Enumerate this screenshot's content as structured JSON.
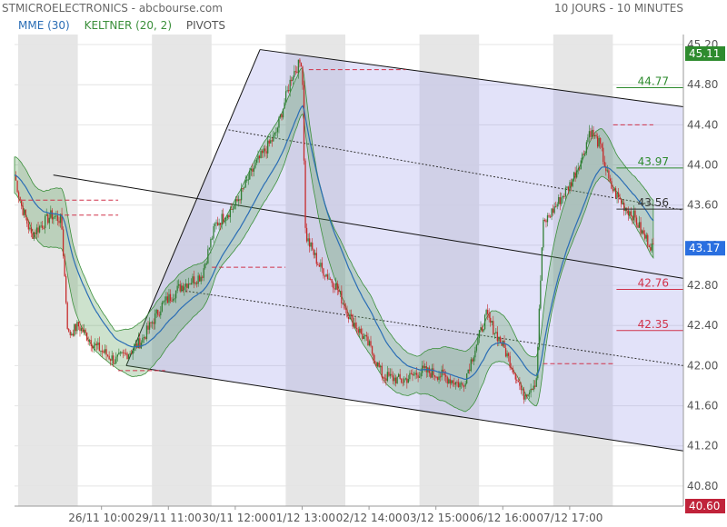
{
  "header": {
    "title": "STMICROELECTRONICS - abcbourse.com",
    "period": "10 JOURS - 10 MINUTES"
  },
  "legend": [
    {
      "label": "MME (30)",
      "color": "#2a6db5"
    },
    {
      "label": "KELTNER (20, 2)",
      "color": "#3b8f3b"
    },
    {
      "label": "PIVOTS",
      "color": "#555555"
    }
  ],
  "chart_data": {
    "type": "candlestick",
    "x_labels": [
      "26/11 10:00",
      "29/11 11:00",
      "30/11 12:00",
      "01/12 13:00",
      "02/12 14:00",
      "03/12 15:00",
      "06/12 16:00",
      "07/12 17:00"
    ],
    "y_ticks": [
      "45.20",
      "44.80",
      "44.40",
      "44.00",
      "43.60",
      "43.20",
      "42.80",
      "42.40",
      "42.00",
      "41.60",
      "41.20",
      "40.80"
    ],
    "ylim": [
      40.6,
      45.3
    ],
    "last_price": "43.17",
    "high_badge": "45.11",
    "low_badge": "40.60",
    "levels": [
      {
        "label": "44.77",
        "value": 44.77,
        "color": "#2e8b2e"
      },
      {
        "label": "43.97",
        "value": 43.97,
        "color": "#2e8b2e"
      },
      {
        "label": "43.56",
        "value": 43.56,
        "color": "#333333"
      },
      {
        "label": "42.76",
        "value": 42.76,
        "color": "#d0324a"
      },
      {
        "label": "42.35",
        "value": 42.35,
        "color": "#d0324a"
      }
    ],
    "price_path": [
      [
        0,
        43.9
      ],
      [
        0.1,
        43.6
      ],
      [
        0.25,
        43.3
      ],
      [
        0.4,
        43.4
      ],
      [
        0.55,
        43.5
      ],
      [
        0.7,
        43.45
      ],
      [
        0.8,
        42.3
      ],
      [
        0.95,
        42.4
      ],
      [
        1.2,
        42.2
      ],
      [
        1.5,
        42.05
      ],
      [
        1.75,
        42.15
      ],
      [
        1.9,
        42.25
      ],
      [
        2.2,
        42.6
      ],
      [
        2.5,
        42.8
      ],
      [
        2.8,
        42.9
      ],
      [
        3.0,
        43.4
      ],
      [
        3.3,
        43.6
      ],
      [
        3.6,
        44.0
      ],
      [
        3.9,
        44.3
      ],
      [
        4.15,
        44.9
      ],
      [
        4.3,
        45.05
      ],
      [
        4.35,
        43.3
      ],
      [
        4.55,
        43.0
      ],
      [
        4.8,
        42.8
      ],
      [
        5.0,
        42.5
      ],
      [
        5.3,
        42.2
      ],
      [
        5.5,
        41.9
      ],
      [
        5.8,
        41.85
      ],
      [
        6.1,
        41.95
      ],
      [
        6.4,
        41.9
      ],
      [
        6.7,
        41.8
      ],
      [
        6.9,
        42.2
      ],
      [
        7.05,
        42.5
      ],
      [
        7.3,
        42.2
      ],
      [
        7.5,
        41.9
      ],
      [
        7.6,
        41.7
      ],
      [
        7.8,
        41.85
      ],
      [
        7.9,
        43.4
      ],
      [
        8.1,
        43.6
      ],
      [
        8.3,
        43.8
      ],
      [
        8.5,
        44.1
      ],
      [
        8.6,
        44.35
      ],
      [
        8.75,
        44.2
      ],
      [
        8.9,
        43.8
      ],
      [
        9.1,
        43.6
      ],
      [
        9.25,
        43.5
      ],
      [
        9.4,
        43.3
      ],
      [
        9.55,
        43.17
      ]
    ]
  }
}
